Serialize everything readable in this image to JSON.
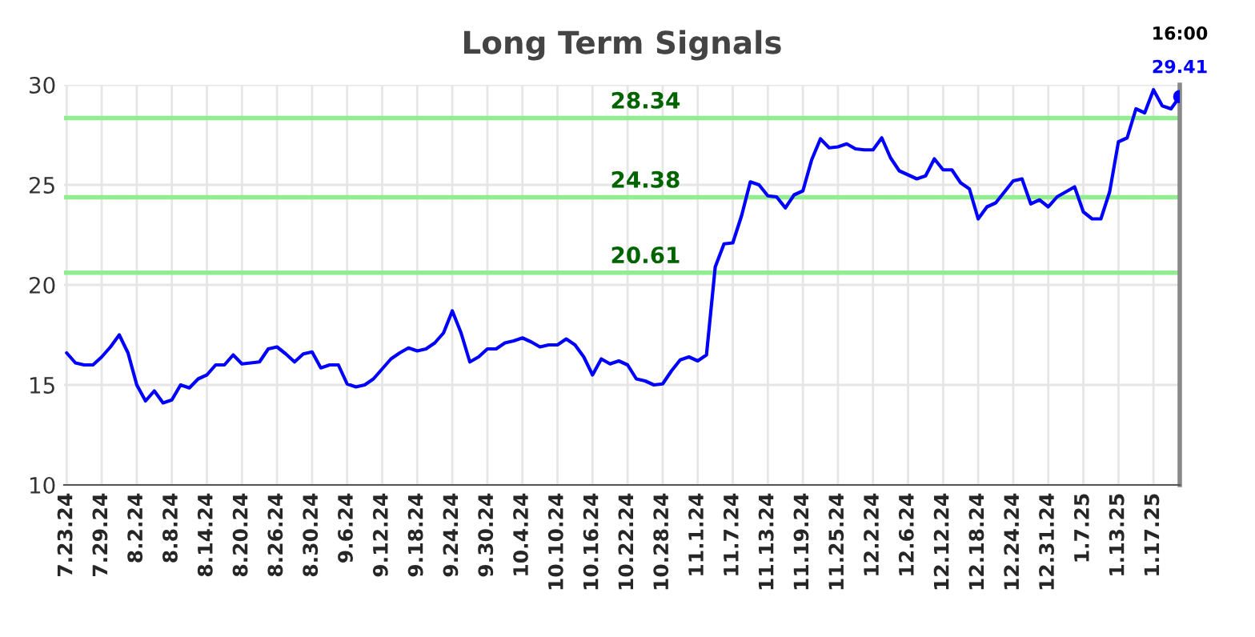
{
  "chart_data": {
    "type": "line",
    "title": "Long Term Signals",
    "categories": [
      "7.23.24",
      null,
      null,
      null,
      "7.29.24",
      null,
      null,
      null,
      "8.2.24",
      null,
      null,
      null,
      "8.8.24",
      null,
      null,
      null,
      "8.14.24",
      null,
      null,
      null,
      "8.20.24",
      null,
      null,
      null,
      "8.26.24",
      null,
      null,
      null,
      "8.30.24",
      null,
      null,
      null,
      "9.6.24",
      null,
      null,
      null,
      "9.12.24",
      null,
      null,
      null,
      "9.18.24",
      null,
      null,
      null,
      "9.24.24",
      null,
      null,
      null,
      "9.30.24",
      null,
      null,
      null,
      "10.4.24",
      null,
      null,
      null,
      "10.10.24",
      null,
      null,
      null,
      "10.16.24",
      null,
      null,
      null,
      "10.22.24",
      null,
      null,
      null,
      "10.28.24",
      null,
      null,
      null,
      "11.1.24",
      null,
      null,
      null,
      "11.7.24",
      null,
      null,
      null,
      "11.13.24",
      null,
      null,
      null,
      "11.19.24",
      null,
      null,
      null,
      "11.25.24",
      null,
      null,
      null,
      "12.2.24",
      null,
      null,
      null,
      "12.6.24",
      null,
      null,
      null,
      "12.12.24",
      null,
      null,
      null,
      "12.18.24",
      null,
      null,
      null,
      "12.24.24",
      null,
      null,
      null,
      "12.31.24",
      null,
      null,
      null,
      "1.7.25",
      null,
      null,
      null,
      "1.13.25",
      null,
      null,
      null,
      "1.17.25",
      null,
      null,
      null
    ],
    "series": [
      {
        "color": "#0000ff",
        "values": [
          16.6,
          16.1,
          16.0,
          16.0,
          16.4,
          16.9,
          17.5,
          16.6,
          15.0,
          14.2,
          14.7,
          14.1,
          14.25,
          15.0,
          14.85,
          15.3,
          15.5,
          16.0,
          16.0,
          16.5,
          16.05,
          16.1,
          16.15,
          16.8,
          16.9,
          16.55,
          16.15,
          16.55,
          16.65,
          15.85,
          16.0,
          16.0,
          15.05,
          14.9,
          15.0,
          15.3,
          15.8,
          16.3,
          16.6,
          16.85,
          16.7,
          16.8,
          17.1,
          17.6,
          18.7,
          17.6,
          16.15,
          16.4,
          16.8,
          16.8,
          17.1,
          17.2,
          17.35,
          17.15,
          16.9,
          17.0,
          17.0,
          17.3,
          17.0,
          16.4,
          15.5,
          16.3,
          16.05,
          16.2,
          16.0,
          15.3,
          15.2,
          15.0,
          15.05,
          15.7,
          16.25,
          16.4,
          16.2,
          16.5,
          20.9,
          22.05,
          22.1,
          23.45,
          25.15,
          25.0,
          24.45,
          24.4,
          23.85,
          24.5,
          24.7,
          26.25,
          27.3,
          26.85,
          26.9,
          27.05,
          26.8,
          26.75,
          26.75,
          27.35,
          26.35,
          25.7,
          25.5,
          25.3,
          25.45,
          26.3,
          25.75,
          25.75,
          25.1,
          24.8,
          23.3,
          23.9,
          24.1,
          24.65,
          25.2,
          25.3,
          24.05,
          24.25,
          23.9,
          24.4,
          24.65,
          24.9,
          23.65,
          23.3,
          23.3,
          24.65,
          27.15,
          27.35,
          28.8,
          28.6,
          29.75,
          28.95,
          28.8,
          29.41
        ]
      }
    ],
    "ylim": [
      10,
      30
    ],
    "yticks": [
      10,
      15,
      20,
      25,
      30
    ],
    "grid": true,
    "marker": "none",
    "line_style": "solid",
    "ref_lines": [
      {
        "axis": "y",
        "value": 28.34,
        "label": "28.34",
        "color": "#90ee90"
      },
      {
        "axis": "y",
        "value": 24.38,
        "label": "24.38",
        "color": "#90ee90"
      },
      {
        "axis": "y",
        "value": 20.61,
        "label": "20.61",
        "color": "#90ee90"
      }
    ],
    "annotations": [
      "16:00",
      "29.41"
    ]
  }
}
